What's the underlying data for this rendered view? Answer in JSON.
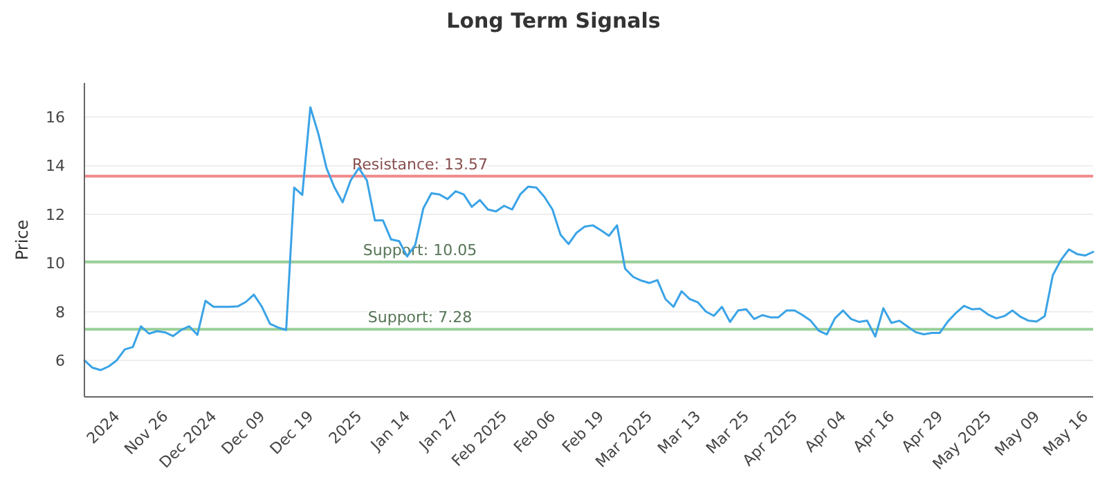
{
  "chart_data": {
    "type": "line",
    "title": "Long Term Signals",
    "ylabel": "Price",
    "categories": [
      null,
      null,
      null,
      null,
      "2024",
      null,
      null,
      null,
      null,
      null,
      "Nov 26",
      null,
      null,
      null,
      null,
      null,
      "Dec 2024",
      null,
      null,
      null,
      null,
      null,
      "Dec 09",
      null,
      null,
      null,
      null,
      null,
      "Dec 19",
      null,
      null,
      null,
      null,
      null,
      "2025",
      null,
      null,
      null,
      null,
      null,
      "Jan 14",
      null,
      null,
      null,
      null,
      null,
      "Jan 27",
      null,
      null,
      null,
      null,
      null,
      "Feb 2025",
      null,
      null,
      null,
      null,
      null,
      "Feb 06",
      null,
      null,
      null,
      null,
      null,
      "Feb 19",
      null,
      null,
      null,
      null,
      null,
      "Mar 2025",
      null,
      null,
      null,
      null,
      null,
      "Mar 13",
      null,
      null,
      null,
      null,
      null,
      "Mar 25",
      null,
      null,
      null,
      null,
      null,
      "Apr 2025",
      null,
      null,
      null,
      null,
      null,
      "Apr 04",
      null,
      null,
      null,
      null,
      null,
      "Apr 16",
      null,
      null,
      null,
      null,
      null,
      "Apr 29",
      null,
      null,
      null,
      null,
      null,
      "May 2025",
      null,
      null,
      null,
      null,
      null,
      "May 09",
      null,
      null,
      null,
      null,
      null,
      "May 16",
      null
    ],
    "series": [
      {
        "color": "#3aa3e6",
        "values": [
          6.0,
          5.7,
          5.6,
          5.75,
          6.0,
          6.45,
          6.55,
          7.4,
          7.1,
          7.2,
          7.15,
          7.0,
          7.25,
          7.4,
          7.05,
          8.45,
          8.2,
          8.2,
          8.2,
          8.22,
          8.4,
          8.7,
          8.2,
          7.5,
          7.35,
          7.25,
          13.1,
          12.8,
          16.4,
          15.3,
          13.9,
          13.1,
          12.5,
          13.4,
          13.9,
          13.4,
          11.75,
          11.75,
          10.97,
          10.9,
          10.27,
          10.75,
          12.25,
          12.87,
          12.82,
          12.63,
          12.95,
          12.82,
          12.31,
          12.59,
          12.2,
          12.12,
          12.35,
          12.2,
          12.82,
          13.14,
          13.1,
          12.72,
          12.2,
          11.16,
          10.78,
          11.25,
          11.5,
          11.55,
          11.35,
          11.12,
          11.55,
          9.77,
          9.43,
          9.28,
          9.18,
          9.3,
          8.52,
          8.2,
          8.84,
          8.52,
          8.39,
          8.01,
          7.83,
          8.2,
          7.58,
          8.05,
          8.1,
          7.7,
          7.86,
          7.77,
          7.77,
          8.05,
          8.05,
          7.86,
          7.63,
          7.22,
          7.07,
          7.73,
          8.05,
          7.7,
          7.58,
          7.63,
          6.98,
          8.14,
          7.54,
          7.63,
          7.39,
          7.16,
          7.07,
          7.13,
          7.13,
          7.6,
          7.95,
          8.24,
          8.1,
          8.12,
          7.88,
          7.73,
          7.82,
          8.05,
          7.79,
          7.63,
          7.6,
          7.82,
          9.5,
          10.12,
          10.56,
          10.37,
          10.31,
          10.46
        ]
      }
    ],
    "ylim": [
      4.5,
      17.4
    ],
    "yticks": [
      6,
      8,
      10,
      12,
      14,
      16
    ],
    "grid": "y",
    "marker": "none",
    "line_style": "solid",
    "ref_lines": [
      {
        "axis": "y",
        "value": 13.57,
        "label": "Resistance: 13.57",
        "color": "#f08a8a"
      },
      {
        "axis": "y",
        "value": 10.05,
        "label": "Support: 10.05",
        "color": "#98cf98"
      },
      {
        "axis": "y",
        "value": 7.28,
        "label": "Support: 7.28",
        "color": "#98cf98"
      }
    ]
  }
}
